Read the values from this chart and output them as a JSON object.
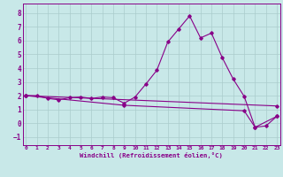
{
  "background_color": "#c8e8e8",
  "grid_color": "#aacccc",
  "line_color": "#880088",
  "xlim_min": -0.3,
  "xlim_max": 23.3,
  "ylim_min": -1.6,
  "ylim_max": 8.7,
  "xticks": [
    0,
    1,
    2,
    3,
    4,
    5,
    6,
    7,
    8,
    9,
    10,
    11,
    12,
    13,
    14,
    15,
    16,
    17,
    18,
    19,
    20,
    21,
    22,
    23
  ],
  "yticks": [
    -1,
    0,
    1,
    2,
    3,
    4,
    5,
    6,
    7,
    8
  ],
  "xlabel": "Windchill (Refroidissement éolien,°C)",
  "curve1_x": [
    0,
    1,
    2,
    3,
    4,
    5,
    6,
    7,
    8,
    9,
    10,
    11,
    12,
    13,
    14,
    15,
    16,
    17,
    18,
    19,
    20,
    21,
    22,
    23
  ],
  "curve1_y": [
    2.0,
    2.0,
    1.8,
    1.7,
    1.85,
    1.9,
    1.8,
    1.9,
    1.85,
    1.45,
    1.9,
    2.85,
    3.85,
    5.9,
    6.85,
    7.8,
    6.2,
    6.55,
    4.75,
    3.2,
    1.95,
    -0.3,
    -0.2,
    0.5
  ],
  "line2_x": [
    0,
    9,
    20,
    21,
    23
  ],
  "line2_y": [
    2.0,
    1.3,
    0.9,
    -0.3,
    0.5
  ],
  "line3_x": [
    0,
    23
  ],
  "line3_y": [
    2.0,
    1.25
  ]
}
